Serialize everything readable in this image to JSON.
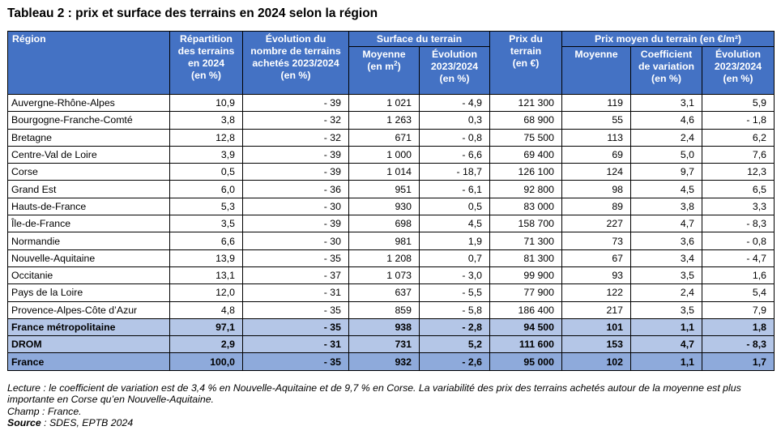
{
  "title": "Tableau 2 : prix et surface des terrains en 2024 selon la région",
  "headers": {
    "region": "Région",
    "repartition": [
      "Répartition",
      "des terrains",
      "en 2024",
      "(en %)"
    ],
    "evolution_nombre": [
      "Évolution du",
      "nombre de terrains",
      "achetés 2023/2024",
      "(en %)"
    ],
    "surface_group": "Surface du terrain",
    "surface_moyenne": [
      "Moyenne",
      "(en m²)"
    ],
    "surface_evolution": [
      "Évolution",
      "2023/2024",
      "(en %)"
    ],
    "prix_terrain": [
      "Prix du",
      "terrain",
      "(en €)"
    ],
    "prix_m2_group": "Prix moyen du terrain (en €/m²)",
    "prix_m2_moyenne": "Moyenne",
    "prix_m2_coef": [
      "Coefficient",
      "de variation",
      "(en %)"
    ],
    "prix_m2_evolution": [
      "Évolution",
      "2023/2024",
      "(en %)"
    ]
  },
  "rows": [
    {
      "region": "Auvergne-Rhône-Alpes",
      "c1": "10,9",
      "c2": "- 39",
      "c3": "1 021",
      "c4": "- 4,9",
      "c5": "121 300",
      "c6": "119",
      "c7": "3,1",
      "c8": "5,9",
      "kind": "normal"
    },
    {
      "region": "Bourgogne-Franche-Comté",
      "c1": "3,8",
      "c2": "- 32",
      "c3": "1 263",
      "c4": "0,3",
      "c5": "68 900",
      "c6": "55",
      "c7": "4,6",
      "c8": "- 1,8",
      "kind": "normal"
    },
    {
      "region": "Bretagne",
      "c1": "12,8",
      "c2": "- 32",
      "c3": "671",
      "c4": "- 0,8",
      "c5": "75 500",
      "c6": "113",
      "c7": "2,4",
      "c8": "6,2",
      "kind": "normal"
    },
    {
      "region": "Centre-Val de Loire",
      "c1": "3,9",
      "c2": "- 39",
      "c3": "1 000",
      "c4": "- 6,6",
      "c5": "69 400",
      "c6": "69",
      "c7": "5,0",
      "c8": "7,6",
      "kind": "normal"
    },
    {
      "region": "Corse",
      "c1": "0,5",
      "c2": "- 39",
      "c3": "1 014",
      "c4": "- 18,7",
      "c5": "126 100",
      "c6": "124",
      "c7": "9,7",
      "c8": "12,3",
      "kind": "normal"
    },
    {
      "region": "Grand Est",
      "c1": "6,0",
      "c2": "- 36",
      "c3": "951",
      "c4": "- 6,1",
      "c5": "92 800",
      "c6": "98",
      "c7": "4,5",
      "c8": "6,5",
      "kind": "normal"
    },
    {
      "region": "Hauts-de-France",
      "c1": "5,3",
      "c2": "- 30",
      "c3": "930",
      "c4": "0,5",
      "c5": "83 000",
      "c6": "89",
      "c7": "3,8",
      "c8": "3,3",
      "kind": "normal"
    },
    {
      "region": "Île-de-France",
      "c1": "3,5",
      "c2": "- 39",
      "c3": "698",
      "c4": "4,5",
      "c5": "158 700",
      "c6": "227",
      "c7": "4,7",
      "c8": "- 8,3",
      "kind": "normal"
    },
    {
      "region": "Normandie",
      "c1": "6,6",
      "c2": "- 30",
      "c3": "981",
      "c4": "1,9",
      "c5": "71 300",
      "c6": "73",
      "c7": "3,6",
      "c8": "- 0,8",
      "kind": "normal"
    },
    {
      "region": "Nouvelle-Aquitaine",
      "c1": "13,9",
      "c2": "- 35",
      "c3": "1 208",
      "c4": "0,7",
      "c5": "81 300",
      "c6": "67",
      "c7": "3,4",
      "c8": "- 4,7",
      "kind": "normal"
    },
    {
      "region": "Occitanie",
      "c1": "13,1",
      "c2": "- 37",
      "c3": "1 073",
      "c4": "- 3,0",
      "c5": "99 900",
      "c6": "93",
      "c7": "3,5",
      "c8": "1,6",
      "kind": "normal"
    },
    {
      "region": "Pays de la Loire",
      "c1": "12,0",
      "c2": "- 31",
      "c3": "637",
      "c4": "- 5,5",
      "c5": "77 900",
      "c6": "122",
      "c7": "2,4",
      "c8": "5,4",
      "kind": "normal"
    },
    {
      "region": "Provence-Alpes-Côte d’Azur",
      "c1": "4,8",
      "c2": "- 35",
      "c3": "859",
      "c4": "- 5,8",
      "c5": "186 400",
      "c6": "217",
      "c7": "3,5",
      "c8": "7,9",
      "kind": "normal"
    },
    {
      "region": "France métropolitaine",
      "c1": "97,1",
      "c2": "- 35",
      "c3": "938",
      "c4": "- 2,8",
      "c5": "94 500",
      "c6": "101",
      "c7": "1,1",
      "c8": "1,8",
      "kind": "sum"
    },
    {
      "region": "DROM",
      "c1": "2,9",
      "c2": "- 31",
      "c3": "731",
      "c4": "5,2",
      "c5": "111 600",
      "c6": "153",
      "c7": "4,7",
      "c8": "- 8,3",
      "kind": "sum"
    },
    {
      "region": "France",
      "c1": "100,0",
      "c2": "- 35",
      "c3": "932",
      "c4": "- 2,6",
      "c5": "95 000",
      "c6": "102",
      "c7": "1,1",
      "c8": "1,7",
      "kind": "total"
    }
  ],
  "notes": {
    "lecture": "Lecture : le coefficient de variation est de 3,4 % en Nouvelle-Aquitaine et de 9,7 % en Corse. La variabilité des prix des terrains achetés autour de la moyenne est plus importante en Corse qu’en Nouvelle-Aquitaine.",
    "champ": "Champ : France.",
    "source_label": "Source",
    "source_text": " : SDES, EPTB 2024"
  },
  "colors": {
    "header_bg": "#4472c4",
    "sum_bg": "#b4c6e7",
    "total_bg": "#8eaadb"
  }
}
